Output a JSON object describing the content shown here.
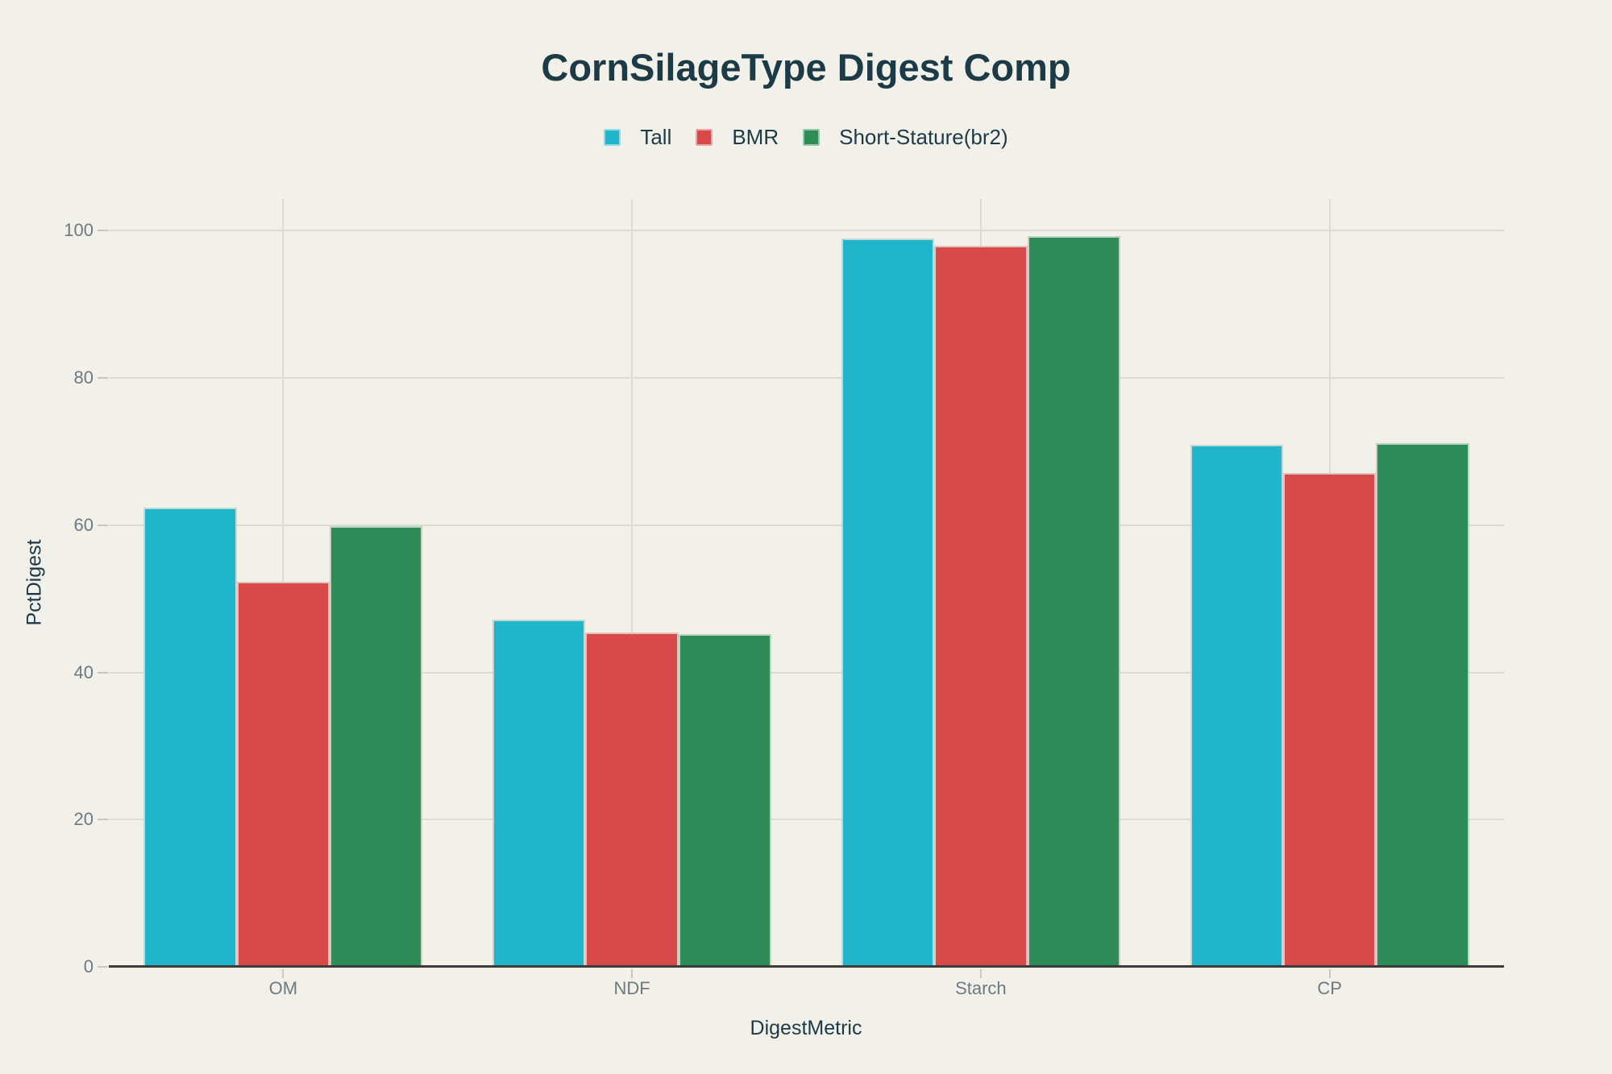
{
  "chart_data": {
    "type": "bar",
    "title": "CornSilageType Digest Comp",
    "xlabel": "DigestMetric",
    "ylabel": "PctDigest",
    "categories": [
      "OM",
      "NDF",
      "Starch",
      "CP"
    ],
    "series": [
      {
        "name": "Tall",
        "color": "#21b5cc",
        "values": [
          62.4,
          47.2,
          98.9,
          70.9
        ]
      },
      {
        "name": "BMR",
        "color": "#d84a4a",
        "values": [
          52.3,
          45.4,
          98.0,
          67.1
        ]
      },
      {
        "name": "Short-Stature(br2)",
        "color": "#2e8c57",
        "values": [
          59.9,
          45.2,
          99.3,
          71.1
        ]
      }
    ],
    "y_ticks": [
      0,
      20,
      40,
      60,
      80,
      100
    ],
    "ylim": [
      0,
      104.3
    ],
    "grid": true,
    "legend_position": "top-center",
    "bar_group_fraction": 0.8
  },
  "colors": {
    "background": "#f1f0e9",
    "title_text": "#1d3b47",
    "tick_text": "#6e7a82",
    "gridline": "#dcdbd4",
    "axis_line": "#3b3b3b",
    "tick_mark": "#c9c8c0",
    "bar_border": "rgba(229,228,220,0.8)"
  }
}
